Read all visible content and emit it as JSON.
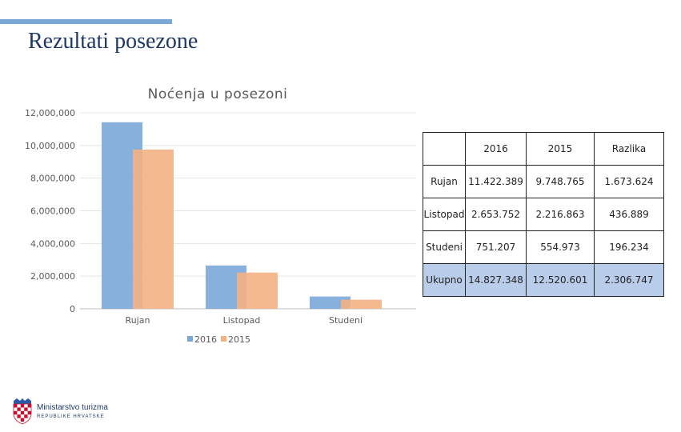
{
  "slide": {
    "title": "Rezultati posezone"
  },
  "colors": {
    "accent": "#7ba7d8",
    "series2016": "#7ba7d8",
    "series2015": "#f4b183",
    "title": "#1f3864",
    "table_total": "#b9cdea"
  },
  "chart_data": {
    "type": "bar",
    "title": "Noćenja u posezoni",
    "categories": [
      "Rujan",
      "Listopad",
      "Studeni"
    ],
    "series": [
      {
        "name": "2016",
        "values": [
          11422389,
          2653752,
          751207
        ]
      },
      {
        "name": "2015",
        "values": [
          9748765,
          2216863,
          554973
        ]
      }
    ],
    "ylim": [
      0,
      12000000
    ],
    "yticks": [
      "0",
      "2,000,000",
      "4,000,000",
      "6,000,000",
      "8,000,000",
      "10,000,000",
      "12,000,000"
    ],
    "grid": true,
    "legend": "bottom"
  },
  "table": {
    "header": [
      "",
      "2016",
      "2015",
      "Razlika"
    ],
    "rows": [
      [
        "Rujan",
        "11.422.389",
        "9.748.765",
        "1.673.624"
      ],
      [
        "Listopad",
        "2.653.752",
        "2.216.863",
        "436.889"
      ],
      [
        "Studeni",
        "751.207",
        "554.973",
        "196.234"
      ],
      [
        "Ukupno",
        "14.827.348",
        "12.520.601",
        "2.306.747"
      ]
    ]
  },
  "logo": {
    "name": "Ministarstvo turizma",
    "subtitle": "REPUBLIKE HRVATSKE",
    "icon": "croatian-coat-of-arms-icon"
  }
}
